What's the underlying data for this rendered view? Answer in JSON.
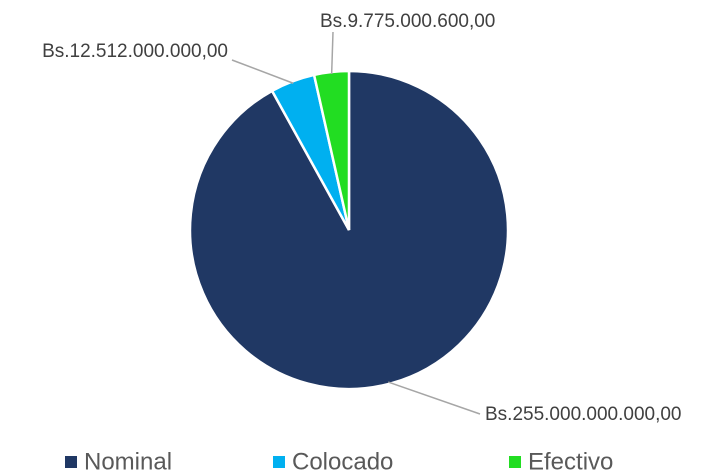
{
  "chart_data": {
    "type": "pie",
    "categories": [
      "Nominal",
      "Colocado",
      "Efectivo"
    ],
    "values": [
      255000000000,
      12512000000,
      9775000600
    ],
    "value_labels": [
      "Bs.255.000.000.000,00",
      "Bs.12.512.000.000,00",
      "Bs.9.775.000.600,00"
    ],
    "colors": [
      "#203864",
      "#00b0f0",
      "#22dd22"
    ],
    "legend": "bottom"
  }
}
